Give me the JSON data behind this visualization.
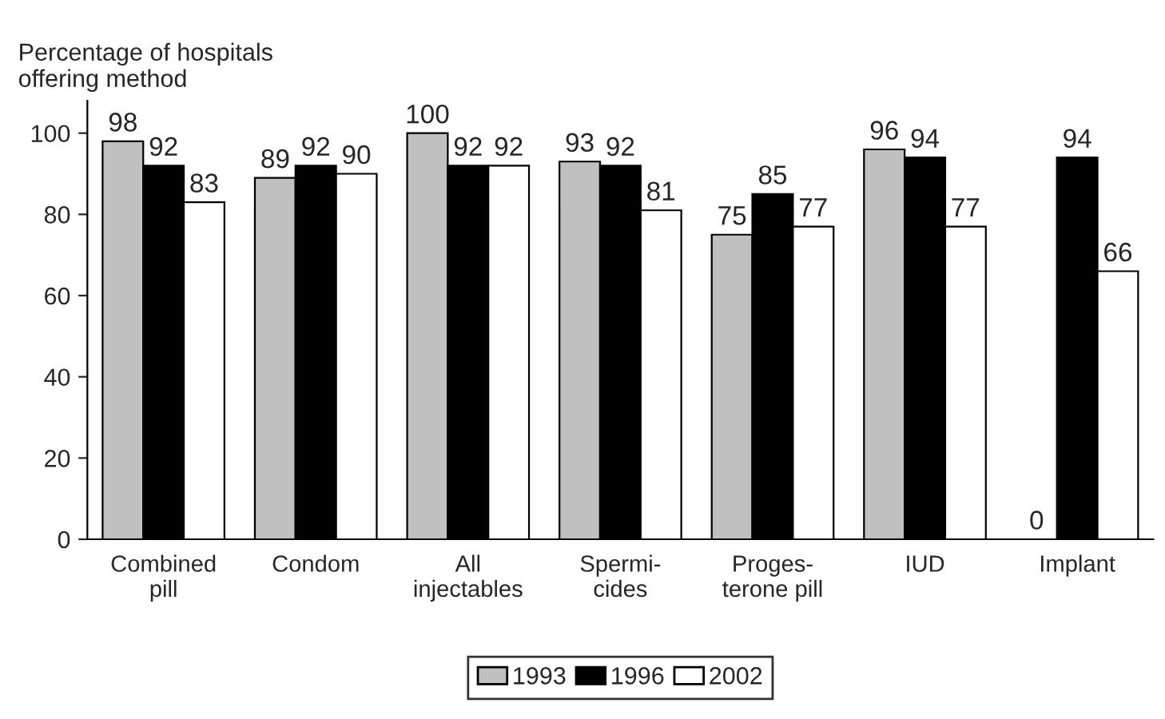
{
  "chart_data": {
    "type": "bar",
    "ylabel": "Percentage of hospitals\noffering method",
    "categories": [
      "Combined\npill",
      "Condom",
      "All\ninjectables",
      "Spermi-\ncides",
      "Proges-\nterone pill",
      "IUD",
      "Implant"
    ],
    "series": [
      {
        "name": "1993",
        "color": "#c0c0c0",
        "values": [
          98,
          89,
          100,
          93,
          75,
          96,
          0
        ]
      },
      {
        "name": "1996",
        "color": "#000000",
        "values": [
          92,
          92,
          92,
          92,
          85,
          94,
          94
        ]
      },
      {
        "name": "2002",
        "color": "#ffffff",
        "values": [
          83,
          90,
          92,
          81,
          77,
          77,
          66
        ]
      }
    ],
    "ylim": [
      0,
      108
    ],
    "yticks": [
      0,
      20,
      40,
      60,
      80,
      100
    ],
    "data_labels": true,
    "grid": false,
    "legend": "bottom"
  }
}
